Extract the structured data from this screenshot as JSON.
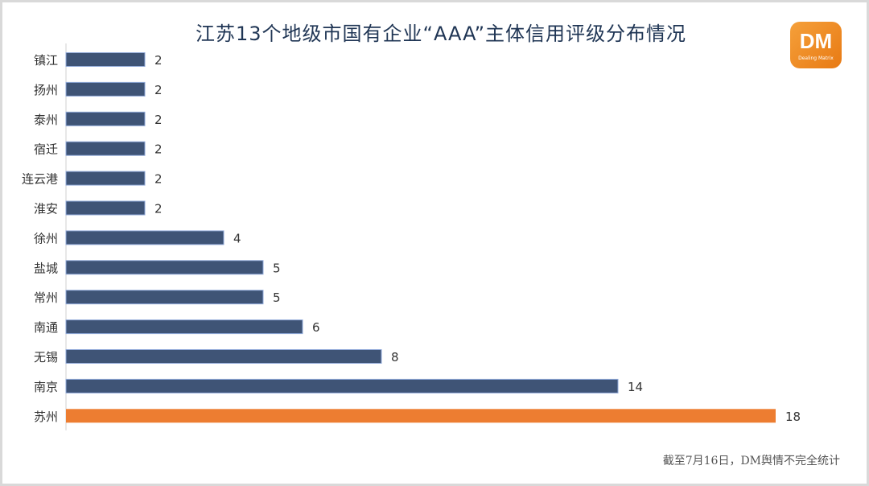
{
  "logo": {
    "text": "DM",
    "subtext": "Dealing Matrix"
  },
  "footer": "截至7月16日，DM舆情不完全统计",
  "colors": {
    "bar": "#3f5476",
    "highlight": "#ed7d31",
    "text": "#1f3554"
  },
  "chart_data": {
    "type": "bar",
    "orientation": "horizontal",
    "title": "江苏13个地级市国有企业“AAA”主体信用评级分布情况",
    "categories": [
      "镇江",
      "扬州",
      "泰州",
      "宿迁",
      "连云港",
      "淮安",
      "徐州",
      "盐城",
      "常州",
      "南通",
      "无锡",
      "南京",
      "苏州"
    ],
    "values": [
      2,
      2,
      2,
      2,
      2,
      2,
      4,
      5,
      5,
      6,
      8,
      14,
      18
    ],
    "highlight_category": "苏州",
    "xlabel": "",
    "ylabel": "",
    "xlim": [
      0,
      18
    ],
    "grid": false,
    "data_labels": true
  }
}
